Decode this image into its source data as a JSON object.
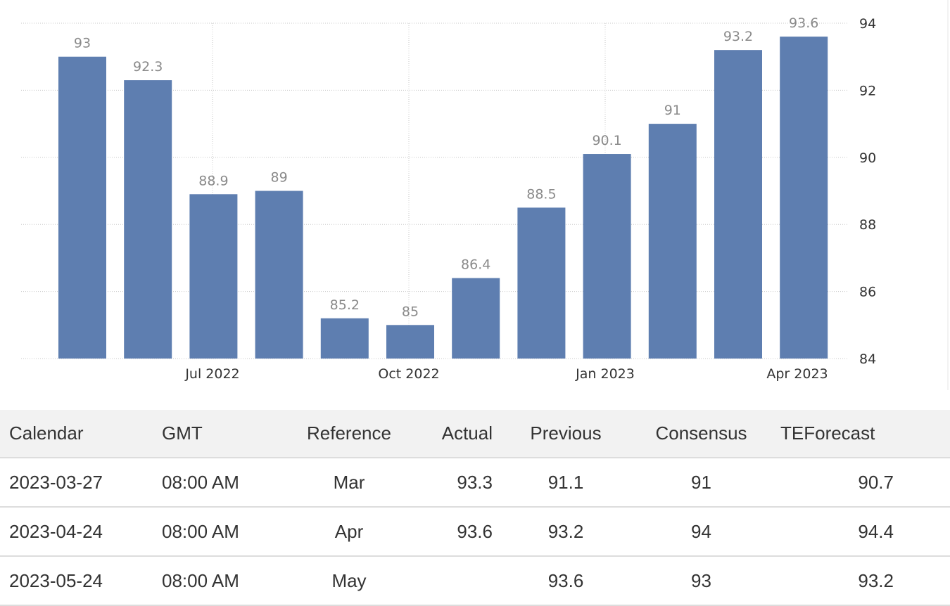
{
  "chart_data": {
    "type": "bar",
    "categories": [
      "2022-05",
      "2022-06",
      "2022-07",
      "2022-08",
      "2022-09",
      "2022-10",
      "2022-11",
      "2022-12",
      "2023-01",
      "2023-02",
      "2023-03",
      "2023-04"
    ],
    "values": [
      93,
      92.3,
      88.9,
      89,
      85.2,
      85,
      86.4,
      88.5,
      90.1,
      91,
      93.2,
      93.6
    ],
    "data_labels": [
      "93",
      "92.3",
      "88.9",
      "89",
      "85.2",
      "85",
      "86.4",
      "88.5",
      "90.1",
      "91",
      "93.2",
      "93.6"
    ],
    "x_tick_labels": [
      {
        "category": "2022-07",
        "label": "Jul 2022"
      },
      {
        "category": "2022-10",
        "label": "Oct 2022"
      },
      {
        "category": "2023-01",
        "label": "Jan 2023"
      },
      {
        "category": "2023-04",
        "label": "Apr 2023"
      }
    ],
    "yticks": [
      84,
      86,
      88,
      90,
      92,
      94
    ],
    "ylim": [
      84,
      94
    ],
    "y_axis_side": "right",
    "grid": true,
    "bar_color": "#5e7eb0",
    "title": "",
    "xlabel": "",
    "ylabel": ""
  },
  "table": {
    "headers": [
      "Calendar",
      "GMT",
      "Reference",
      "Actual",
      "Previous",
      "Consensus",
      "TEForecast"
    ],
    "rows": [
      [
        "2023-03-27",
        "08:00 AM",
        "Mar",
        "93.3",
        "91.1",
        "91",
        "90.7"
      ],
      [
        "2023-04-24",
        "08:00 AM",
        "Apr",
        "93.6",
        "93.2",
        "94",
        "94.4"
      ],
      [
        "2023-05-24",
        "08:00 AM",
        "May",
        "",
        "93.6",
        "93",
        "93.2"
      ]
    ]
  }
}
